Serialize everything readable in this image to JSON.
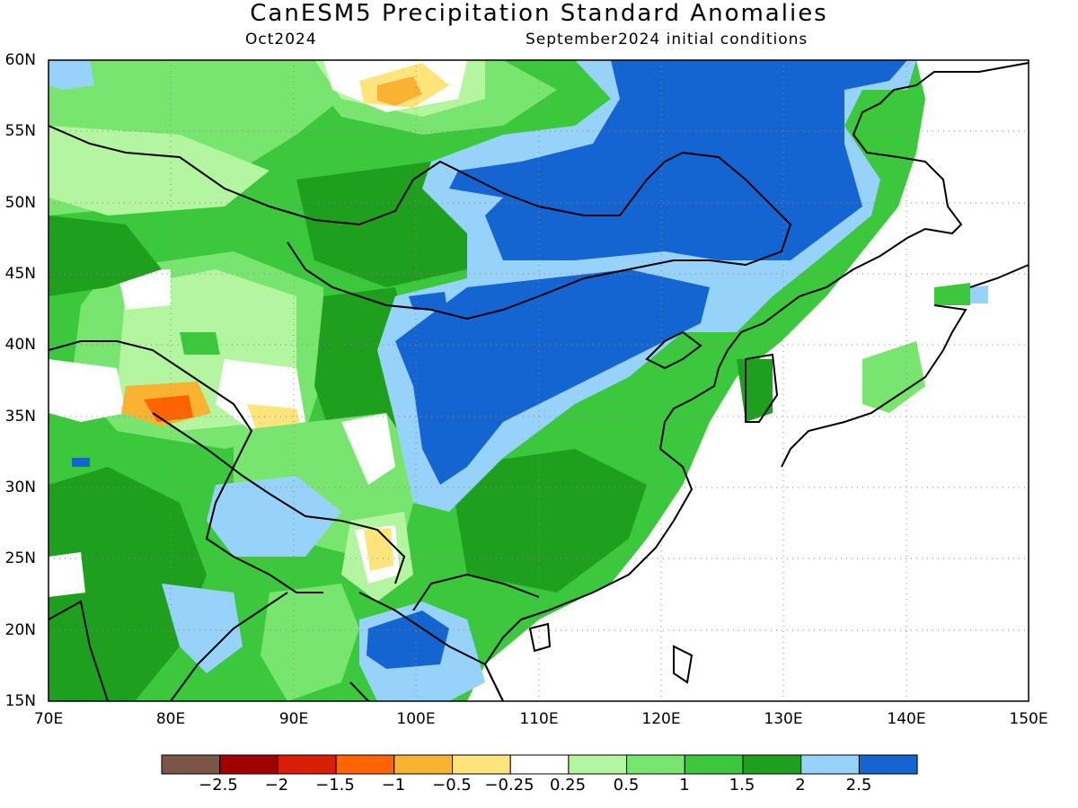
{
  "header": {
    "title": "CanESM5 Precipitation Standard Anomalies",
    "month": "Oct2024",
    "initial_conditions": "September2024 initial conditions"
  },
  "map": {
    "lon_range": [
      70,
      150
    ],
    "lat_range": [
      15,
      60
    ],
    "lon_ticks": [
      "70E",
      "80E",
      "90E",
      "100E",
      "110E",
      "120E",
      "130E",
      "140E",
      "150E"
    ],
    "lat_ticks": [
      "15N",
      "20N",
      "25N",
      "30N",
      "35N",
      "40N",
      "45N",
      "50N",
      "55N",
      "60N"
    ],
    "gridlines": "dotted"
  },
  "colorbar": {
    "colors": [
      "#7a5548",
      "#a00000",
      "#d81e05",
      "#ff6400",
      "#f9b231",
      "#fee47b",
      "#ffffff",
      "#b4f5a0",
      "#78e66e",
      "#3cc83c",
      "#1ea01e",
      "#96d2fa",
      "#1464d2"
    ],
    "labels": [
      "−2.5",
      "−2",
      "−1.5",
      "−1",
      "−0.5",
      "−0.25",
      "0.25",
      "0.5",
      "1",
      "1.5",
      "2",
      "2.5"
    ]
  },
  "legend_meaning": {
    "blue": "strong positive anomaly",
    "green": "positive anomaly",
    "orange_red": "negative anomaly"
  }
}
